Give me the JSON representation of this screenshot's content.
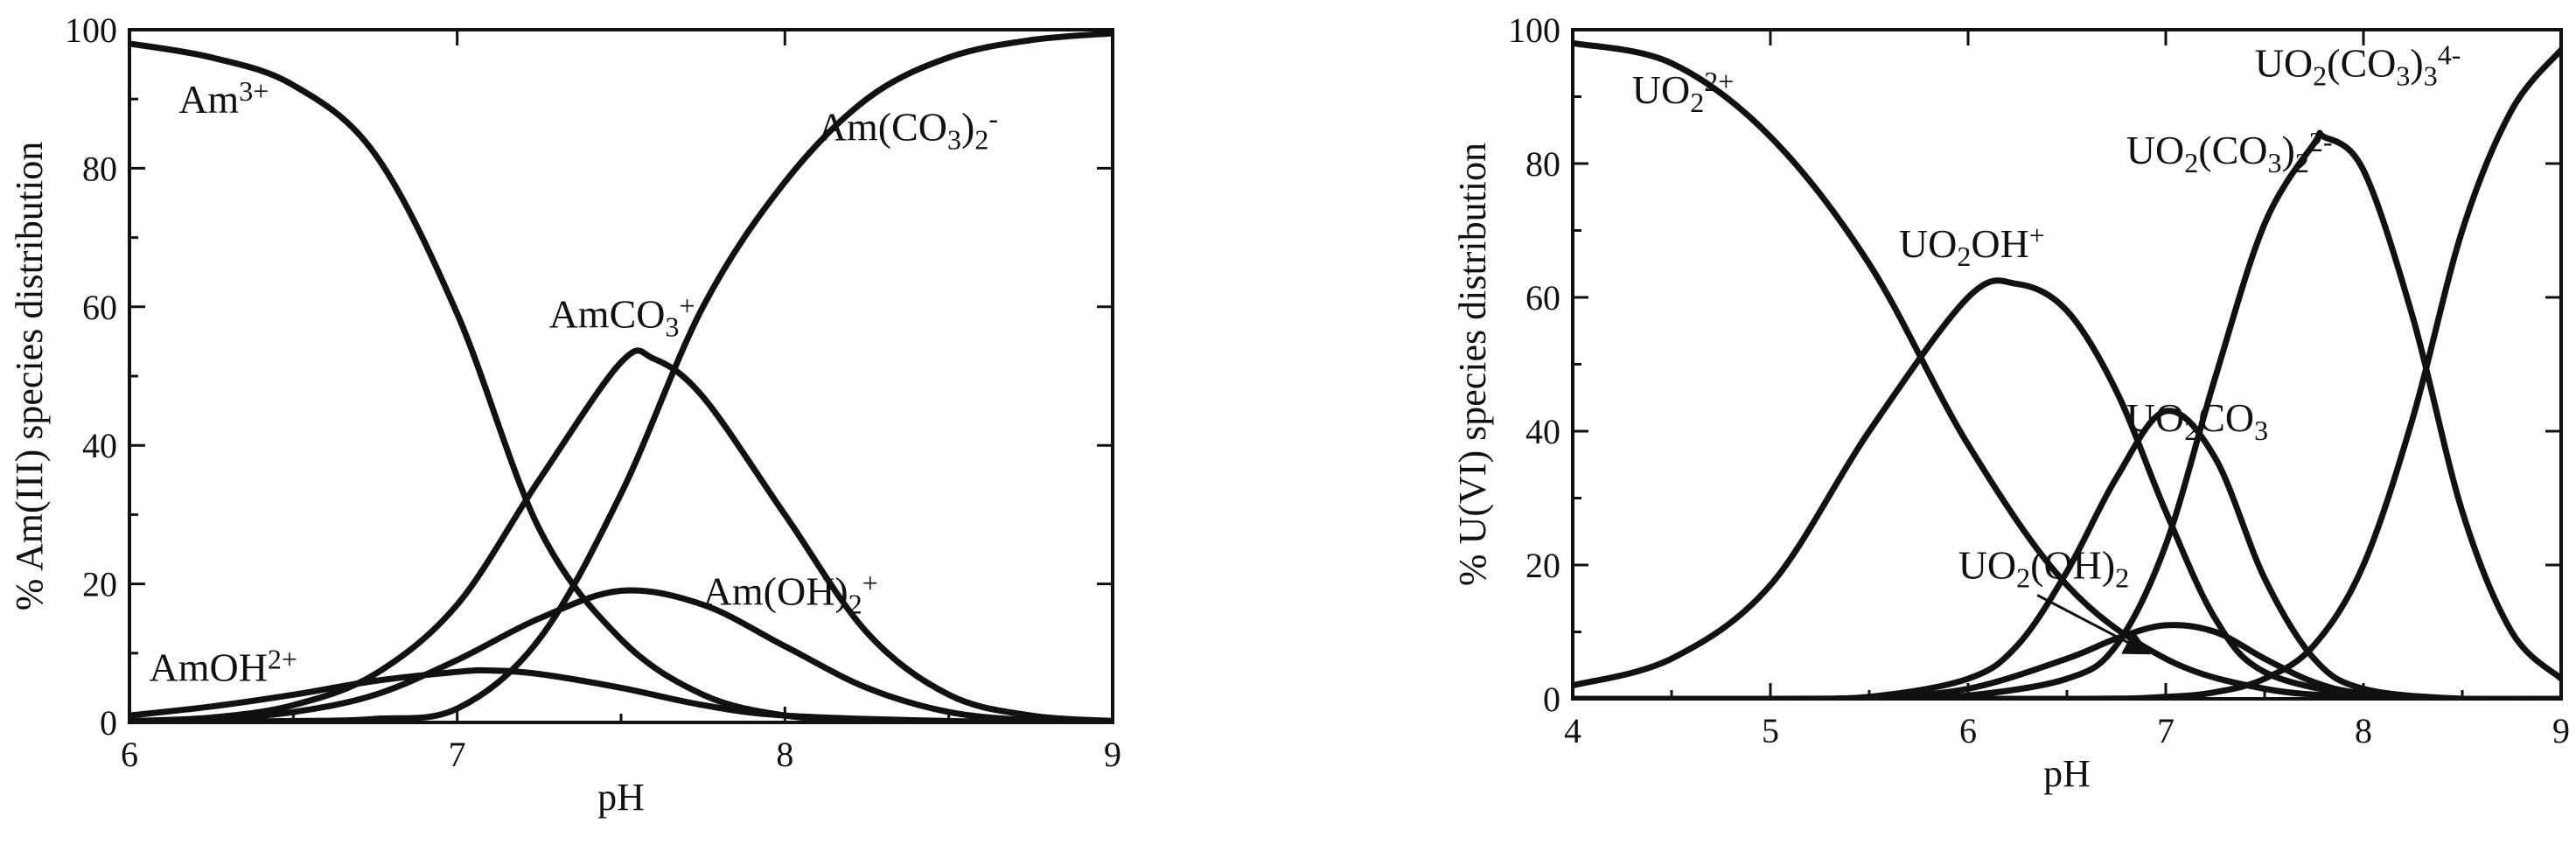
{
  "chart_data": [
    {
      "type": "line",
      "xlabel": "pH",
      "ylabel": "% Am(III) species distribution",
      "xlim": [
        6,
        9
      ],
      "ylim": [
        0,
        100
      ],
      "xticks": [
        6,
        7,
        8,
        9
      ],
      "yticks": [
        0,
        20,
        40,
        60,
        80,
        100
      ],
      "grid": false,
      "series": [
        {
          "name": "Am3+",
          "label_parts": [
            [
              "Am",
              ""
            ],
            [
              "3+",
              "sup"
            ]
          ],
          "x": [
            6.0,
            6.25,
            6.5,
            6.75,
            7.0,
            7.25,
            7.5,
            7.75,
            8.0,
            8.25,
            8.5,
            9.0
          ],
          "y": [
            98,
            96,
            92,
            82,
            59,
            28,
            12,
            4,
            1,
            0.3,
            0.1,
            0
          ]
        },
        {
          "name": "AmOH2+",
          "label_parts": [
            [
              "AmOH",
              ""
            ],
            [
              "2+",
              "sup"
            ]
          ],
          "x": [
            6.0,
            6.25,
            6.5,
            6.75,
            7.0,
            7.1,
            7.25,
            7.5,
            7.75,
            8.0,
            8.5,
            9.0
          ],
          "y": [
            1,
            2.3,
            4,
            6,
            7.3,
            7.5,
            7,
            5,
            2.5,
            1,
            0.2,
            0
          ]
        },
        {
          "name": "AmCO3+",
          "label_parts": [
            [
              "AmCO",
              ""
            ],
            [
              "3",
              "sub"
            ],
            [
              "+",
              "sup"
            ]
          ],
          "x": [
            6.0,
            6.25,
            6.5,
            6.75,
            7.0,
            7.25,
            7.5,
            7.6,
            7.75,
            8.0,
            8.25,
            8.5,
            8.75,
            9.0
          ],
          "y": [
            0.2,
            0.7,
            2.5,
            7,
            17,
            35,
            52,
            52.5,
            47,
            30,
            13,
            4,
            1,
            0.2
          ]
        },
        {
          "name": "Am(OH)2+",
          "label_parts": [
            [
              "Am(OH)",
              ""
            ],
            [
              "2",
              "sub"
            ],
            [
              "+",
              "sup"
            ]
          ],
          "x": [
            6.0,
            6.25,
            6.5,
            6.75,
            7.0,
            7.25,
            7.5,
            7.75,
            8.0,
            8.25,
            8.5,
            8.75,
            9.0
          ],
          "y": [
            0.1,
            0.5,
            1.5,
            4,
            9,
            15,
            19,
            17,
            11,
            5,
            1.5,
            0.3,
            0
          ]
        },
        {
          "name": "Am(CO3)2-",
          "label_parts": [
            [
              "Am(CO",
              ""
            ],
            [
              "3",
              "sub"
            ],
            [
              ")",
              ""
            ],
            [
              "2",
              "sub"
            ],
            [
              "-",
              "sup"
            ]
          ],
          "x": [
            6.0,
            6.5,
            6.75,
            7.0,
            7.25,
            7.5,
            7.75,
            8.0,
            8.25,
            8.5,
            8.75,
            9.0
          ],
          "y": [
            0,
            0.2,
            0.5,
            2,
            12,
            33,
            60,
            78,
            90,
            96,
            98.5,
            99.5
          ]
        }
      ],
      "annotations": [
        {
          "label_parts": [
            [
              "Am",
              ""
            ],
            [
              "3+",
              "sup"
            ]
          ],
          "x": 6.15,
          "y": 88
        },
        {
          "label_parts": [
            [
              "AmOH",
              ""
            ],
            [
              "2+",
              "sup"
            ]
          ],
          "x": 6.06,
          "y": 6
        },
        {
          "label_parts": [
            [
              "AmCO",
              ""
            ],
            [
              "3",
              "sub"
            ],
            [
              "+",
              "sup"
            ]
          ],
          "x": 7.28,
          "y": 57
        },
        {
          "label_parts": [
            [
              "Am(OH)",
              ""
            ],
            [
              "2",
              "sub"
            ],
            [
              "+",
              "sup"
            ]
          ],
          "x": 7.75,
          "y": 17
        },
        {
          "label_parts": [
            [
              "Am(CO",
              ""
            ],
            [
              "3",
              "sub"
            ],
            [
              ")",
              ""
            ],
            [
              "2",
              "sub"
            ],
            [
              "-",
              "sup"
            ]
          ],
          "x": 8.1,
          "y": 84
        }
      ]
    },
    {
      "type": "line",
      "xlabel": "pH",
      "ylabel": "% U(VI) species distribution",
      "xlim": [
        4,
        9
      ],
      "ylim": [
        0,
        100
      ],
      "xticks": [
        4,
        5,
        6,
        7,
        8,
        9
      ],
      "yticks": [
        0,
        20,
        40,
        60,
        80,
        100
      ],
      "grid": false,
      "series": [
        {
          "name": "UO2 2+",
          "label_parts": [
            [
              "UO",
              ""
            ],
            [
              "2",
              "sub"
            ],
            [
              "2+",
              "sup"
            ]
          ],
          "x": [
            4.0,
            4.5,
            5.0,
            5.5,
            6.0,
            6.5,
            7.0,
            7.5,
            8.0,
            8.5,
            9.0
          ],
          "y": [
            98,
            95,
            84,
            65,
            38,
            17,
            6,
            1.5,
            0.3,
            0,
            0
          ]
        },
        {
          "name": "UO2OH+",
          "label_parts": [
            [
              "UO",
              ""
            ],
            [
              "2",
              "sub"
            ],
            [
              "OH",
              ""
            ],
            [
              "+",
              "sup"
            ]
          ],
          "x": [
            4.0,
            4.5,
            5.0,
            5.5,
            6.0,
            6.25,
            6.5,
            6.75,
            7.0,
            7.25,
            7.5,
            8.0,
            8.5,
            9.0
          ],
          "y": [
            2,
            6,
            17,
            40,
            60,
            62,
            58,
            46,
            28,
            12,
            4,
            0.5,
            0,
            0
          ]
        },
        {
          "name": "UO2(OH)2",
          "label_parts": [
            [
              "UO",
              ""
            ],
            [
              "2",
              "sub"
            ],
            [
              "(OH)",
              ""
            ],
            [
              "2",
              "sub"
            ]
          ],
          "x": [
            4.0,
            5.0,
            5.5,
            6.0,
            6.5,
            6.75,
            7.0,
            7.25,
            7.5,
            7.75,
            8.0,
            8.5,
            9.0
          ],
          "y": [
            0,
            0,
            0.2,
            1.5,
            6,
            9,
            11,
            10,
            6,
            2.5,
            0.8,
            0,
            0
          ]
        },
        {
          "name": "UO2CO3",
          "label_parts": [
            [
              "UO",
              ""
            ],
            [
              "2",
              "sub"
            ],
            [
              "CO",
              ""
            ],
            [
              "3",
              "sub"
            ]
          ],
          "x": [
            4.0,
            5.0,
            5.5,
            6.0,
            6.25,
            6.5,
            6.75,
            7.0,
            7.25,
            7.5,
            7.75,
            8.0,
            8.5,
            9.0
          ],
          "y": [
            0,
            0,
            0.3,
            3,
            8,
            19,
            33,
            43,
            36,
            18,
            6,
            1.5,
            0,
            0
          ]
        },
        {
          "name": "UO2(CO3)2 2-",
          "label_parts": [
            [
              "UO",
              ""
            ],
            [
              "2",
              "sub"
            ],
            [
              "(CO",
              ""
            ],
            [
              "3",
              "sub"
            ],
            [
              ")",
              ""
            ],
            [
              "2",
              "sub"
            ],
            [
              "2-",
              "sup"
            ]
          ],
          "x": [
            4.0,
            5.5,
            6.0,
            6.5,
            6.75,
            7.0,
            7.25,
            7.5,
            7.75,
            7.8,
            8.0,
            8.25,
            8.5,
            8.75,
            9.0
          ],
          "y": [
            0,
            0,
            0.5,
            3,
            8,
            23,
            48,
            71,
            83,
            84,
            79,
            57,
            28,
            10,
            3
          ]
        },
        {
          "name": "UO2(CO3)3 4-",
          "label_parts": [
            [
              "UO",
              ""
            ],
            [
              "2",
              "sub"
            ],
            [
              "(CO",
              ""
            ],
            [
              "3",
              "sub"
            ],
            [
              ")",
              ""
            ],
            [
              "3",
              "sub"
            ],
            [
              "4-",
              "sup"
            ]
          ],
          "x": [
            4.0,
            6.5,
            7.0,
            7.25,
            7.5,
            7.75,
            8.0,
            8.25,
            8.5,
            8.75,
            9.0
          ],
          "y": [
            0,
            0,
            0.3,
            1,
            3,
            8,
            20,
            42,
            70,
            88,
            97
          ]
        }
      ],
      "annotations": [
        {
          "label_parts": [
            [
              "UO",
              ""
            ],
            [
              "2",
              "sub"
            ],
            [
              "2+",
              "sup"
            ]
          ],
          "x": 4.3,
          "y": 89
        },
        {
          "label_parts": [
            [
              "UO",
              ""
            ],
            [
              "2",
              "sub"
            ],
            [
              "OH",
              ""
            ],
            [
              "+",
              "sup"
            ]
          ],
          "x": 5.65,
          "y": 66
        },
        {
          "label_parts": [
            [
              "UO",
              ""
            ],
            [
              "2",
              "sub"
            ],
            [
              "CO",
              ""
            ],
            [
              "3",
              "sub"
            ]
          ],
          "x": 6.8,
          "y": 40
        },
        {
          "label_parts": [
            [
              "UO",
              ""
            ],
            [
              "2",
              "sub"
            ],
            [
              "(OH)",
              ""
            ],
            [
              "2",
              "sub"
            ]
          ],
          "x": 5.95,
          "y": 18
        },
        {
          "label_parts": [
            [
              "UO",
              ""
            ],
            [
              "2",
              "sub"
            ],
            [
              "(CO",
              ""
            ],
            [
              "3",
              "sub"
            ],
            [
              ")",
              ""
            ],
            [
              "2",
              "sub"
            ],
            [
              "2-",
              "sup"
            ]
          ],
          "x": 6.8,
          "y": 80
        },
        {
          "label_parts": [
            [
              "UO",
              ""
            ],
            [
              "2",
              "sub"
            ],
            [
              "(CO",
              ""
            ],
            [
              "3",
              "sub"
            ],
            [
              ")",
              ""
            ],
            [
              "3",
              "sub"
            ],
            [
              "4-",
              "sup"
            ]
          ],
          "x": 7.45,
          "y": 93
        }
      ],
      "arrow": {
        "from": [
          6.35,
          15.5
        ],
        "to": [
          6.9,
          7
        ]
      }
    }
  ]
}
